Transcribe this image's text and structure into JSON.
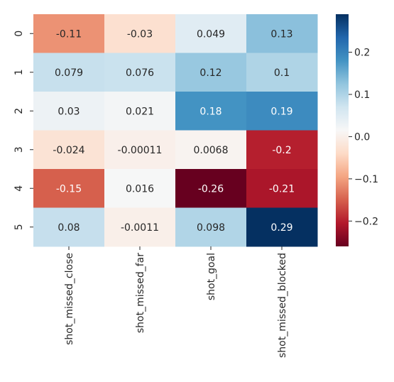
{
  "chart_data": {
    "type": "heatmap",
    "columns": [
      "shot_missed_close",
      "shot_missed_far",
      "shot_goal",
      "shot_missed_blocked"
    ],
    "rows": [
      "0",
      "1",
      "2",
      "3",
      "4",
      "5"
    ],
    "values": [
      [
        -0.11,
        -0.03,
        0.049,
        0.13
      ],
      [
        0.079,
        0.076,
        0.12,
        0.1
      ],
      [
        0.03,
        0.021,
        0.18,
        0.19
      ],
      [
        -0.024,
        -0.00011,
        0.0068,
        -0.2
      ],
      [
        -0.15,
        0.016,
        -0.26,
        -0.21
      ],
      [
        0.08,
        -0.0011,
        0.098,
        0.29
      ]
    ],
    "annotations": [
      [
        "-0.11",
        "-0.03",
        "0.049",
        "0.13"
      ],
      [
        "0.079",
        "0.076",
        "0.12",
        "0.1"
      ],
      [
        "0.03",
        "0.021",
        "0.18",
        "0.19"
      ],
      [
        "-0.024",
        "-0.00011",
        "0.0068",
        "-0.2"
      ],
      [
        "-0.15",
        "0.016",
        "-0.26",
        "-0.21"
      ],
      [
        "0.08",
        "-0.0011",
        "0.098",
        "0.29"
      ]
    ],
    "colormap": "RdBu",
    "vmin": -0.26,
    "vmax": 0.29,
    "colorbar": {
      "ticks": [
        0.2,
        0.1,
        0.0,
        -0.1,
        -0.2
      ],
      "tick_labels": [
        "0.2",
        "0.1",
        "0.0",
        "−0.1",
        "−0.2"
      ]
    }
  }
}
